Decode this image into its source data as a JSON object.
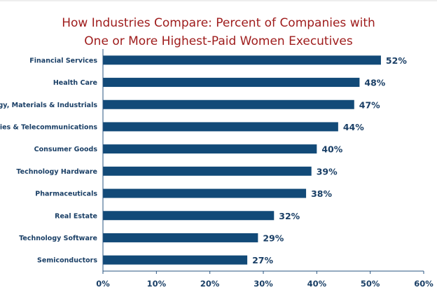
{
  "chart_data": {
    "type": "bar",
    "orientation": "horizontal",
    "title_lines": [
      "How Industries Compare: Percent of Companies with",
      "One or More Highest-Paid Women Executives"
    ],
    "categories": [
      "Financial Services",
      "Health Care",
      "Energy, Materials & Industrials",
      "Utilities & Telecommunications",
      "Consumer Goods",
      "Technology Hardware",
      "Pharmaceuticals",
      "Real Estate",
      "Technology Software",
      "Semiconductors"
    ],
    "values": [
      52,
      48,
      47,
      44,
      40,
      39,
      38,
      32,
      29,
      27
    ],
    "data_labels": [
      "52%",
      "48%",
      "47%",
      "44%",
      "40%",
      "39%",
      "38%",
      "32%",
      "29%",
      "27%"
    ],
    "xlabel": "",
    "ylabel": "",
    "xlim": [
      0,
      60
    ],
    "x_ticks": [
      0,
      10,
      20,
      30,
      40,
      50,
      60
    ],
    "x_tick_labels": [
      "0%",
      "10%",
      "20%",
      "30%",
      "40%",
      "50%",
      "60%"
    ],
    "grid": false,
    "legend": "none",
    "colors": {
      "bar": "#124a78",
      "title": "#9e1b1b",
      "text": "#1a3f66",
      "axis": "#2a5580"
    }
  }
}
